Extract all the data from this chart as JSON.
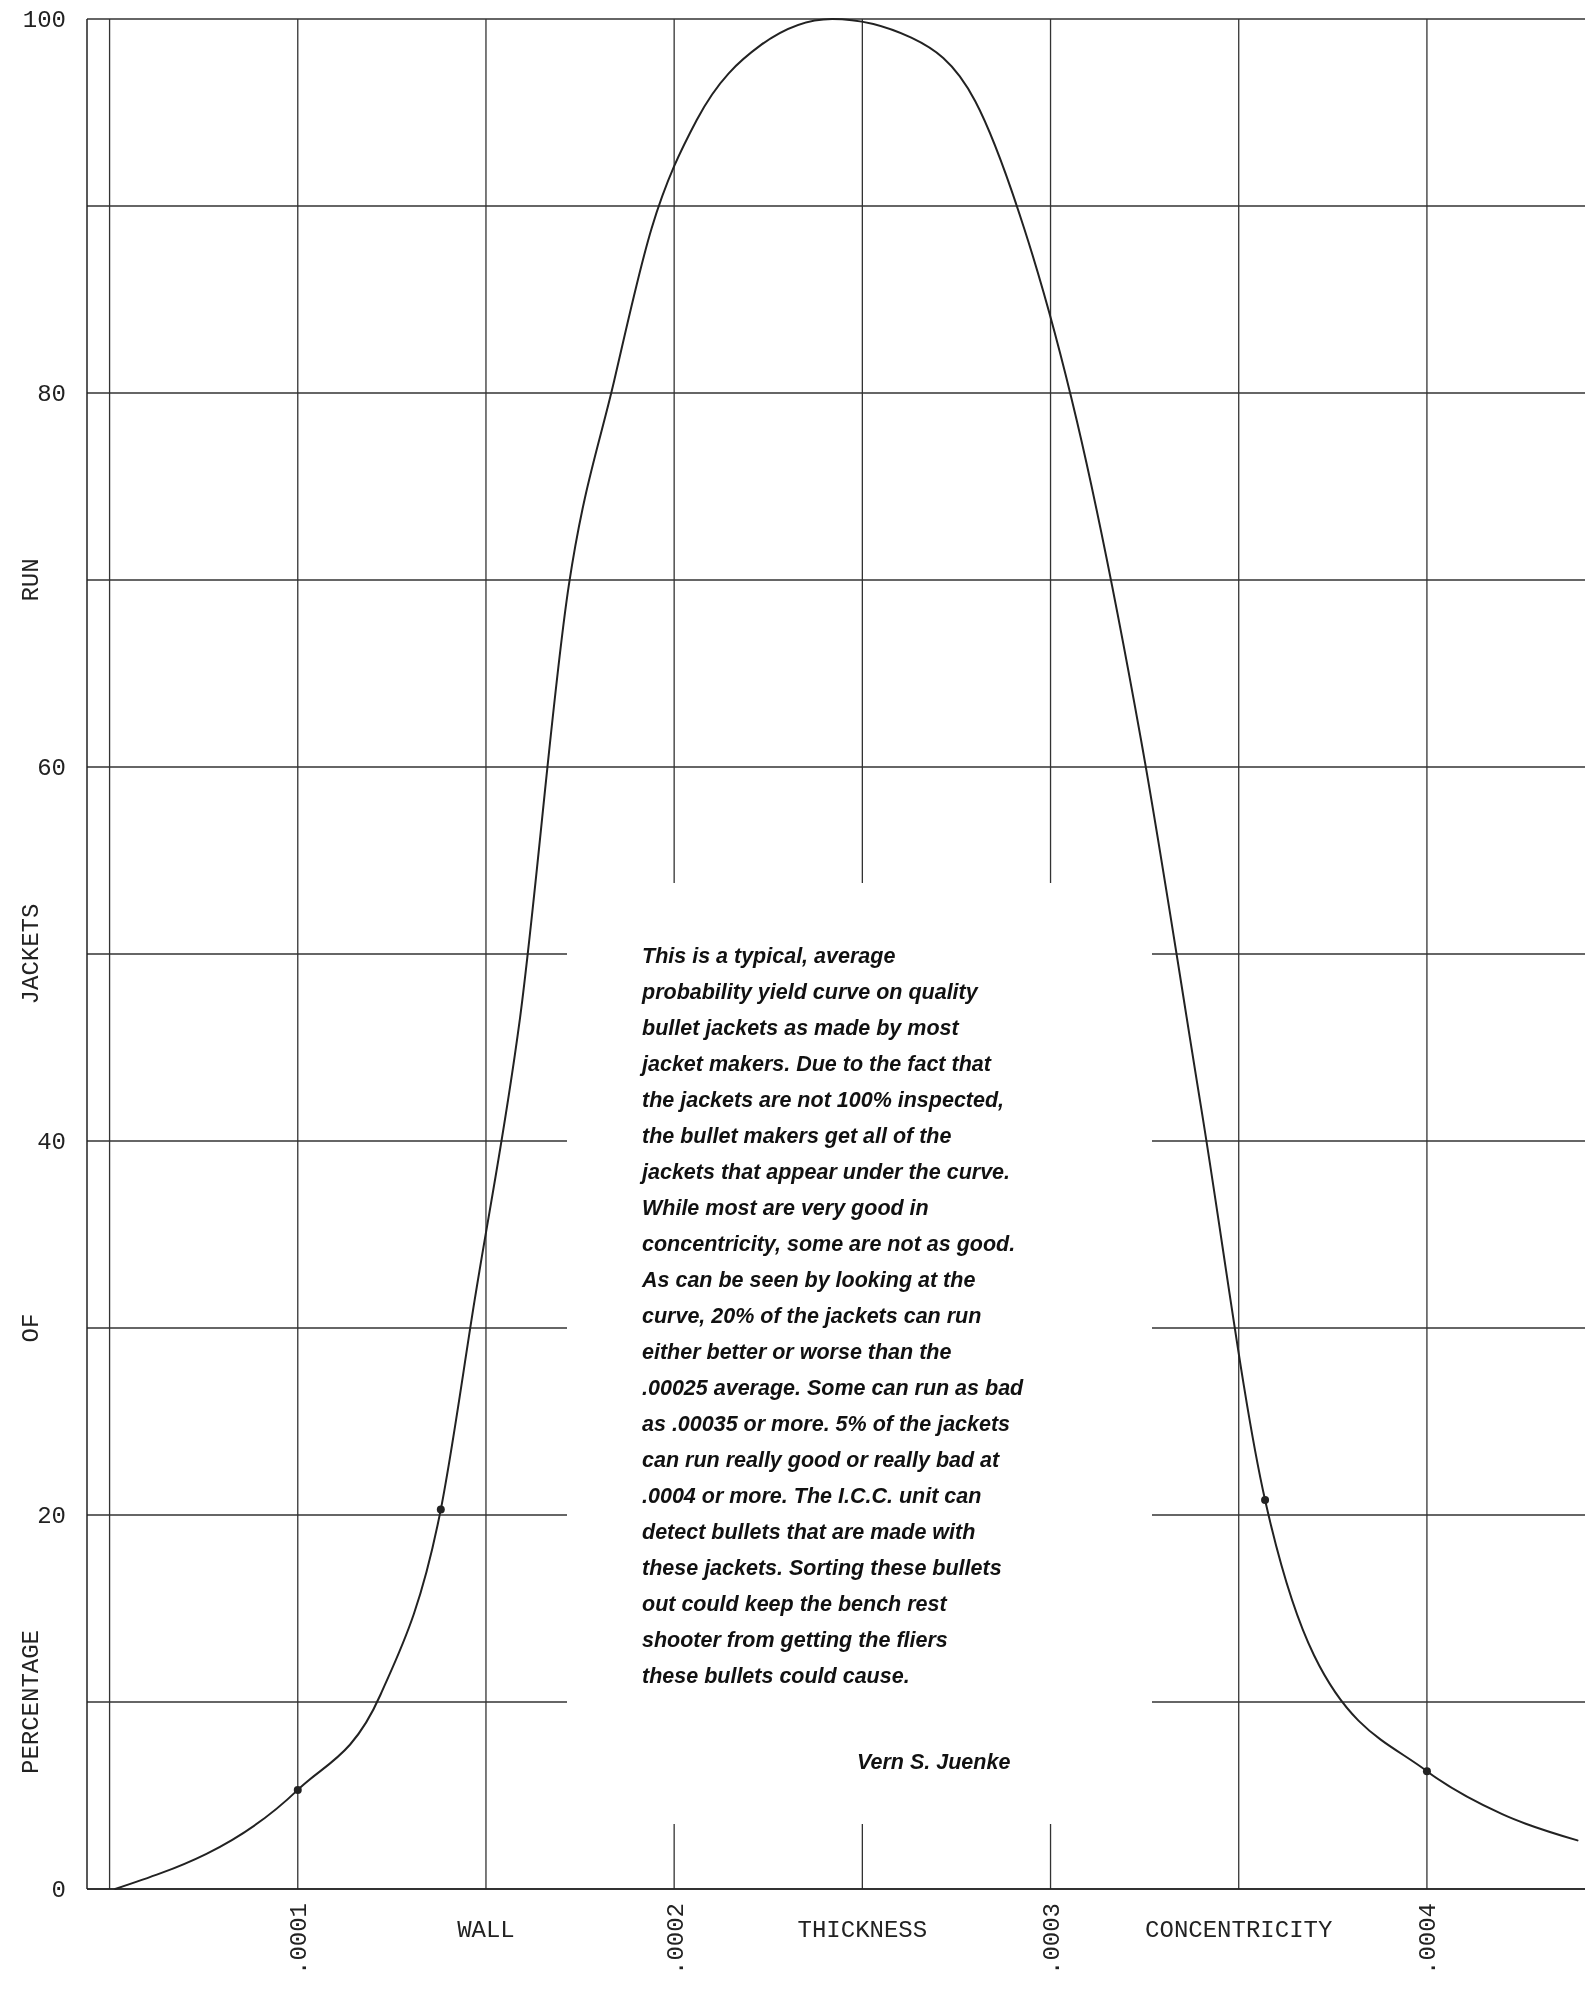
{
  "chart_data": {
    "type": "line",
    "xlabel": "WALL THICKNESS CONCENTRICITY",
    "ylabel": "PERCENTAGE OF JACKETS RUN",
    "xlim": [
      4.4e-05,
      0.000442
    ],
    "ylim": [
      0,
      100
    ],
    "xticks": [
      {
        "value": 5e-05,
        "label": null
      },
      {
        "value": 0.0001,
        "label": ".0001"
      },
      {
        "value": 0.00015,
        "label": null
      },
      {
        "value": 0.0002,
        "label": ".0002"
      },
      {
        "value": 0.00025,
        "label": null
      },
      {
        "value": 0.0003,
        "label": ".0003"
      },
      {
        "value": 0.00035,
        "label": null
      },
      {
        "value": 0.0004,
        "label": ".0004"
      }
    ],
    "yticks": [
      0,
      {
        "value": 10,
        "label": null
      },
      20,
      {
        "value": 30,
        "label": null
      },
      40,
      {
        "value": 50,
        "label": null
      },
      60,
      {
        "value": 70,
        "label": null
      },
      80,
      {
        "value": 90,
        "label": null
      },
      100
    ],
    "grid": true,
    "series": [
      {
        "color": "#222222",
        "x": [
          5.15e-05,
          0.0001,
          0.000122,
          0.000138,
          0.000147,
          0.000159,
          0.000172,
          0.000184,
          0.000194,
          0.000206,
          0.000223,
          0.000242,
          0.000263,
          0.00028,
          0.000293,
          0.000307,
          0.000324,
          0.00034,
          0.000357,
          0.00037,
          0.0004,
          0.00042,
          0.00044
        ],
        "values": [
          0,
          5.3,
          10.4,
          20.3,
          31.5,
          46.5,
          69.7,
          80.6,
          88.8,
          94.6,
          98.6,
          100,
          99,
          95.6,
          88.8,
          78.5,
          61.5,
          41.8,
          20.8,
          12.5,
          6.3,
          4,
          2.6
        ]
      },
      {
        "type": "scatter",
        "color": "#222222",
        "x": [
          0.0001,
          0.000138,
          0.000357,
          0.0004
        ],
        "values": [
          5.3,
          20.3,
          20.8,
          6.3
        ]
      }
    ],
    "annotations": [
      "This is a typical, average probability yield curve on quality bullet jackets as made by most jacket makers. Due to the fact that the jackets are not 100% inspected, the bullet makers get all of the jackets that appear under the curve. While most are very good in concentricity, some are not as good. As can be seen by looking at the curve, 20% of the jackets can run either better or worse than the .00025 average. Some can run as bad as .00035 or more. 5% of the jackets can run really good or really bad at .0004 or more. The I.C.C. unit can detect bullets that are made with these jackets. Sorting these bullets out could keep the bench rest shooter from getting the fliers these bullets could cause.",
      "Vern S. Juenke"
    ]
  }
}
